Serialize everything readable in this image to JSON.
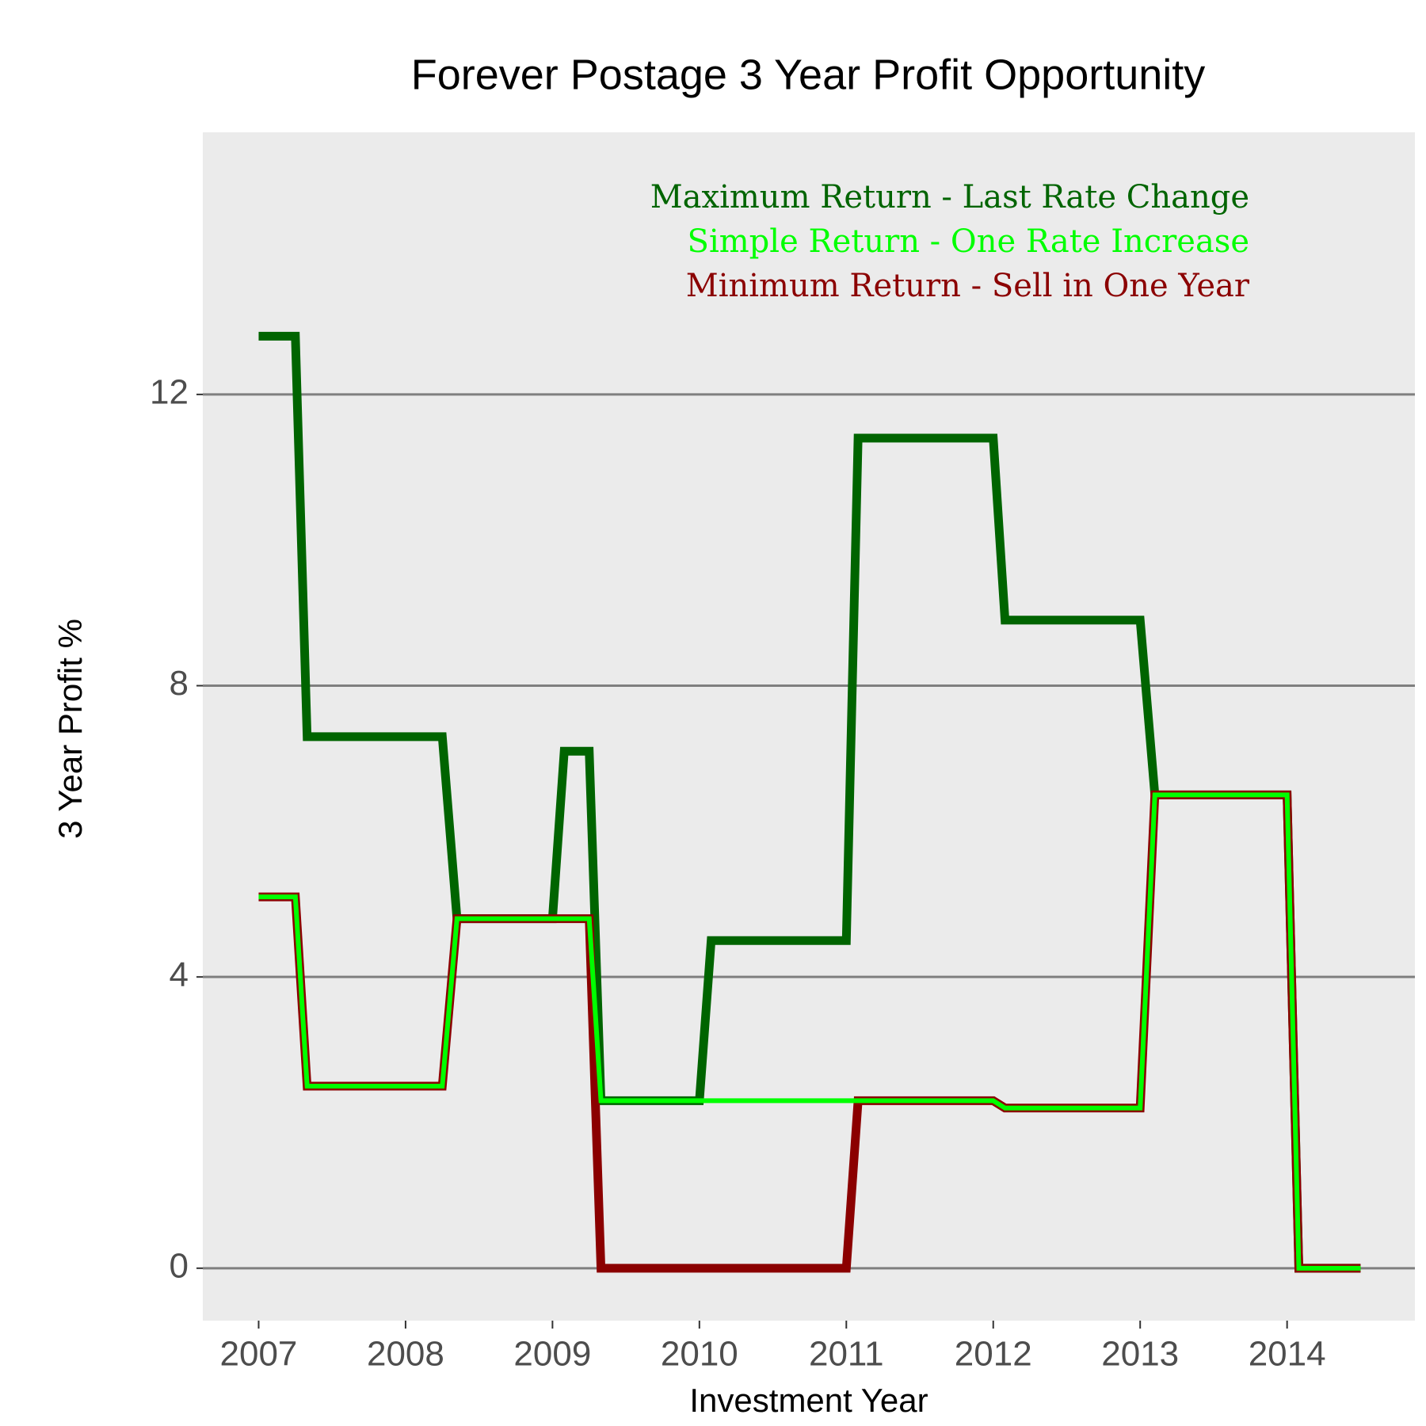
{
  "chart_data": {
    "type": "line",
    "title": "Forever Postage 3 Year Profit Opportunity",
    "x_label": "Investment Year",
    "y_label": "3 Year Profit %",
    "x": [
      2007,
      2007.25,
      2007.33,
      2008.25,
      2008.35,
      2009,
      2009.08,
      2009.25,
      2009.33,
      2010,
      2010.08,
      2011,
      2011.08,
      2012,
      2012.08,
      2013,
      2013.1,
      2014,
      2014.08,
      2014.5
    ],
    "series": [
      {
        "name": "Maximum Return - Last Rate Change",
        "color": "#006400",
        "values": [
          12.8,
          12.8,
          7.3,
          7.3,
          4.8,
          4.8,
          7.1,
          7.1,
          2.3,
          2.3,
          4.5,
          4.5,
          11.4,
          11.4,
          8.9,
          8.9,
          6.5,
          6.5,
          0,
          0
        ]
      },
      {
        "name": "Simple Return - One Rate Increase",
        "color": "#00ff00",
        "values": [
          5.1,
          5.1,
          2.5,
          2.5,
          4.8,
          4.8,
          4.8,
          4.8,
          2.3,
          2.3,
          2.3,
          2.3,
          2.3,
          2.3,
          2.2,
          2.2,
          6.5,
          6.5,
          0,
          0
        ]
      },
      {
        "name": "Minimum Return - Sell in One Year",
        "color": "#8b0000",
        "values": [
          5.1,
          5.1,
          2.5,
          2.5,
          4.8,
          4.8,
          4.8,
          4.8,
          0,
          0,
          0,
          0,
          2.3,
          2.3,
          2.2,
          2.2,
          6.5,
          6.5,
          0,
          0
        ]
      }
    ],
    "xlim": [
      2006.62,
      2014.87
    ],
    "ylim": [
      -0.72,
      15.6
    ],
    "xticks": [
      2007,
      2008,
      2009,
      2010,
      2011,
      2012,
      2013,
      2014
    ],
    "yticks": [
      0,
      4,
      8,
      12
    ],
    "grid": true,
    "legend": "top-right"
  }
}
